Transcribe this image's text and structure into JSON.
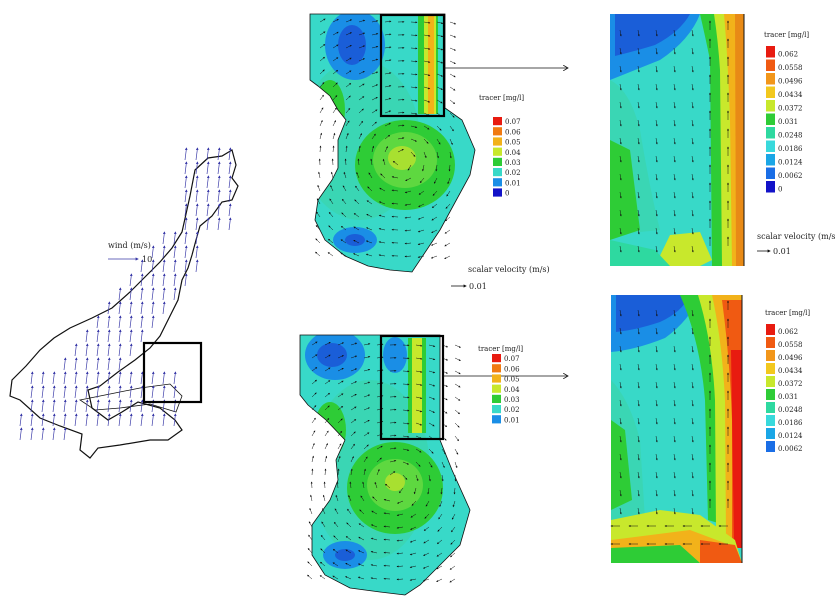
{
  "wind": {
    "label": "wind (m/s)",
    "scale_value": "10"
  },
  "legend_top_mid": {
    "title": "tracer [mg/l]",
    "levels": [
      {
        "label": "0.07",
        "color": "#e81b10"
      },
      {
        "label": "0.06",
        "color": "#f07a12"
      },
      {
        "label": "0.05",
        "color": "#f2b21a"
      },
      {
        "label": "0.04",
        "color": "#c8e82c"
      },
      {
        "label": "0.03",
        "color": "#2ecc36"
      },
      {
        "label": "0.02",
        "color": "#38d9c8"
      },
      {
        "label": "0.01",
        "color": "#1a8ee6"
      },
      {
        "label": "0",
        "color": "#1212c8"
      }
    ]
  },
  "legend_bottom_mid": {
    "title": "tracer [mg/l]",
    "levels": [
      {
        "label": "0.07",
        "color": "#e81b10"
      },
      {
        "label": "0.06",
        "color": "#f07a12"
      },
      {
        "label": "0.05",
        "color": "#f2b21a"
      },
      {
        "label": "0.04",
        "color": "#c8e82c"
      },
      {
        "label": "0.03",
        "color": "#2ecc36"
      },
      {
        "label": "0.02",
        "color": "#38d9c8"
      },
      {
        "label": "0.01",
        "color": "#1a8ee6"
      }
    ]
  },
  "legend_top_right": {
    "title": "tracer [mg/l]",
    "levels": [
      {
        "label": "0.062",
        "color": "#e81b10"
      },
      {
        "label": "0.0558",
        "color": "#f05a12"
      },
      {
        "label": "0.0496",
        "color": "#f2961a"
      },
      {
        "label": "0.0434",
        "color": "#f2c81e"
      },
      {
        "label": "0.0372",
        "color": "#c8e82c"
      },
      {
        "label": "0.031",
        "color": "#2ecc36"
      },
      {
        "label": "0.0248",
        "color": "#2ed9a0"
      },
      {
        "label": "0.0186",
        "color": "#38d9dc"
      },
      {
        "label": "0.0124",
        "color": "#1aa6e6"
      },
      {
        "label": "0.0062",
        "color": "#1a6ee6"
      },
      {
        "label": "0",
        "color": "#1212c8"
      }
    ]
  },
  "legend_bottom_right": {
    "title": "tracer [mg/l]",
    "levels": [
      {
        "label": "0.062",
        "color": "#e81b10"
      },
      {
        "label": "0.0558",
        "color": "#f05a12"
      },
      {
        "label": "0.0496",
        "color": "#f2961a"
      },
      {
        "label": "0.0434",
        "color": "#f2c81e"
      },
      {
        "label": "0.0372",
        "color": "#c8e82c"
      },
      {
        "label": "0.031",
        "color": "#2ecc36"
      },
      {
        "label": "0.0248",
        "color": "#2ed9a0"
      },
      {
        "label": "0.0186",
        "color": "#38d9dc"
      },
      {
        "label": "0.0124",
        "color": "#1aa6e6"
      },
      {
        "label": "0.0062",
        "color": "#1a6ee6"
      }
    ]
  },
  "velocity_top_mid": {
    "label": "scalar velocity (m/s)",
    "value": "0.01"
  },
  "velocity_top_right": {
    "label": "scalar velocity (m/s)",
    "value": "0.01"
  }
}
